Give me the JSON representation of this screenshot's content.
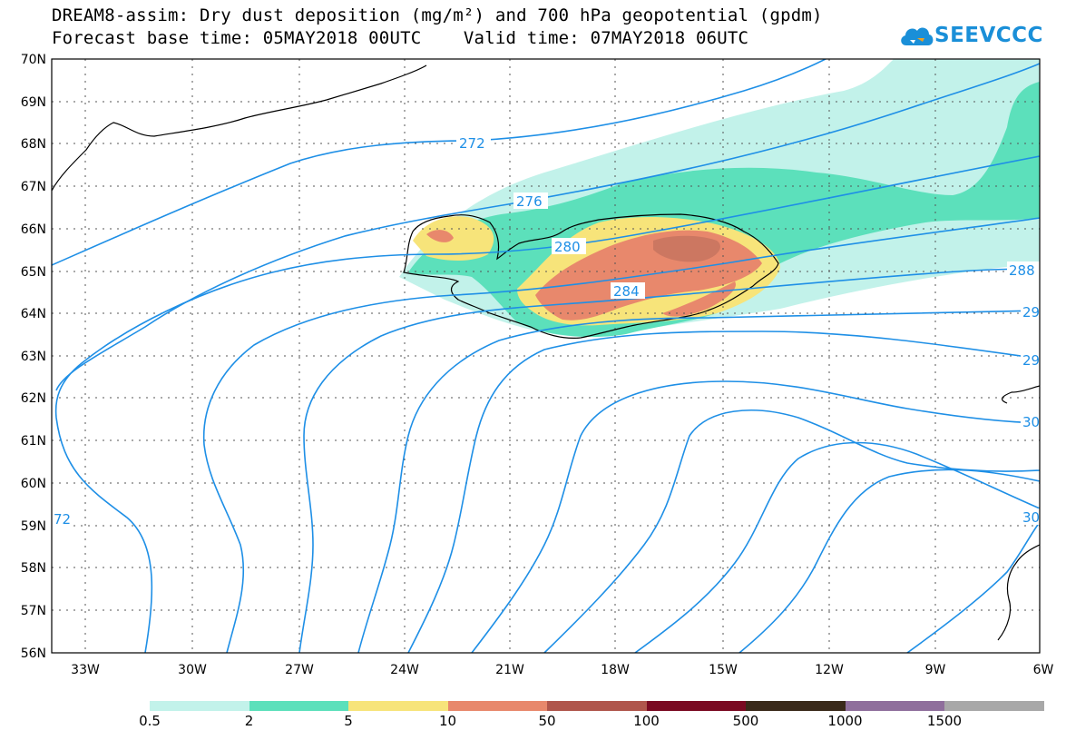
{
  "title": {
    "line1": "DREAM8-assim: Dry dust deposition (mg/m²) and 700 hPa geopotential (gpdm)",
    "line2": "Forecast base time: 05MAY2018 00UTC    Valid time: 07MAY2018 06UTC"
  },
  "logo": {
    "text": "SEEVCCC",
    "icon": "cloud-icon",
    "color": "#1a8fd8"
  },
  "map": {
    "lat_labels": [
      "70N",
      "69N",
      "68N",
      "67N",
      "66N",
      "65N",
      "64N",
      "63N",
      "62N",
      "61N",
      "60N",
      "59N",
      "58N",
      "57N",
      "56N"
    ],
    "lon_labels": [
      "33W",
      "30W",
      "27W",
      "24W",
      "21W",
      "18W",
      "15W",
      "12W",
      "9W",
      "6W"
    ],
    "lat_range": [
      56,
      70
    ],
    "lon_range": [
      -34.2,
      -6
    ],
    "grid": true,
    "contour_color": "#1e8fe6",
    "contour_labels": [
      "272",
      "276",
      "280",
      "284",
      "288",
      "29",
      "29",
      "30",
      "30",
      "72"
    ]
  },
  "legend": {
    "labels": [
      "0.5",
      "2",
      "5",
      "10",
      "50",
      "100",
      "500",
      "1000",
      "1500"
    ],
    "colors": [
      "#c2f2ea",
      "#5ce0bb",
      "#f7e47a",
      "#e8886c",
      "#b0564c",
      "#7a0a22",
      "#3a2a1a",
      "#8f6f9c",
      "#a8a8a8"
    ]
  }
}
